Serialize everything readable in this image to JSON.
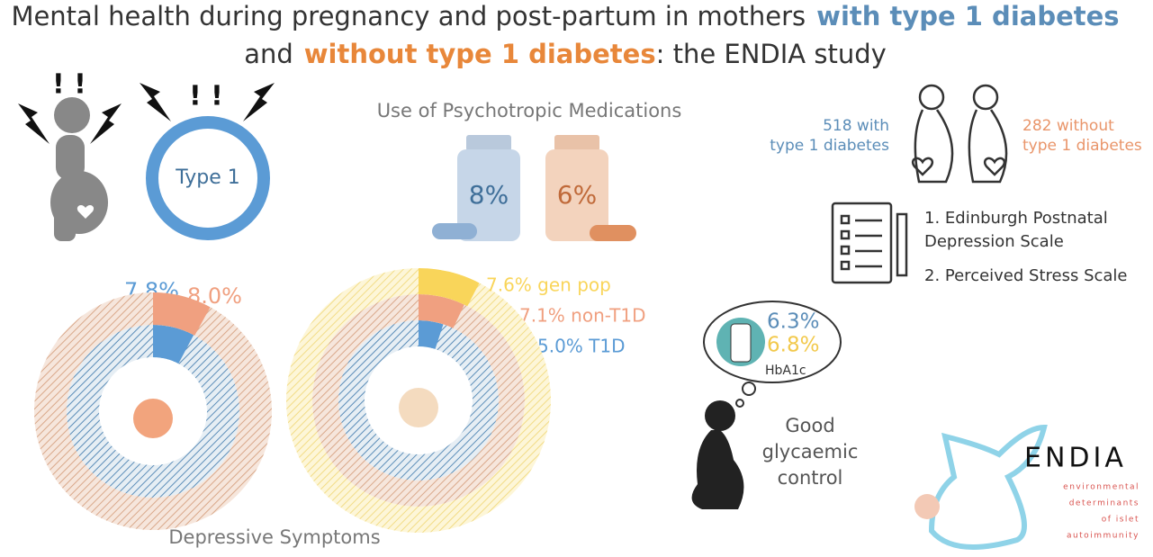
{
  "title": {
    "parts": [
      "Mental health during pregnancy and post-partum in mothers",
      "with type 1 diabetes",
      "and",
      "without type 1 diabetes",
      ": the ENDIA study"
    ]
  },
  "type1_label": "Type 1",
  "medications": {
    "title": "Use of Psychotropic Medications",
    "with_t1d": "8%",
    "without_t1d": "6%"
  },
  "cohort": {
    "with_t1d": [
      "518 with",
      "type 1 diabetes"
    ],
    "without_t1d": [
      "282 without",
      "type 1 diabetes"
    ]
  },
  "scales": [
    [
      "1. Edinburgh Postnatal",
      "Depression Scale"
    ],
    [
      "2. Perceived Stress Scale"
    ]
  ],
  "hba1c": {
    "values": [
      "6.3%",
      "6.8%"
    ],
    "label": "HbA1c"
  },
  "glycaemic": [
    "Good",
    "glycaemic",
    "control"
  ],
  "depressive": {
    "title": "Depressive Symptoms",
    "donuts": [
      {
        "rings": [
          {
            "value": 7.8,
            "label": "7.8%",
            "color": "#5b9bd5"
          },
          {
            "value": 8.0,
            "label": "8.0%",
            "color": "#f0a080"
          }
        ]
      },
      {
        "rings": [
          {
            "value": 5.0,
            "label": "5.0% T1D",
            "color": "#5b9bd5"
          },
          {
            "value": 7.1,
            "label": "7.1% non-T1D",
            "color": "#f0a080"
          },
          {
            "value": 7.6,
            "label": "7.6% gen pop",
            "color": "#f9d55a"
          }
        ]
      }
    ]
  },
  "endia": {
    "name": "ENDIA",
    "lines": [
      "environmental",
      "determinants",
      "of islet",
      "autoimmunity"
    ]
  }
}
